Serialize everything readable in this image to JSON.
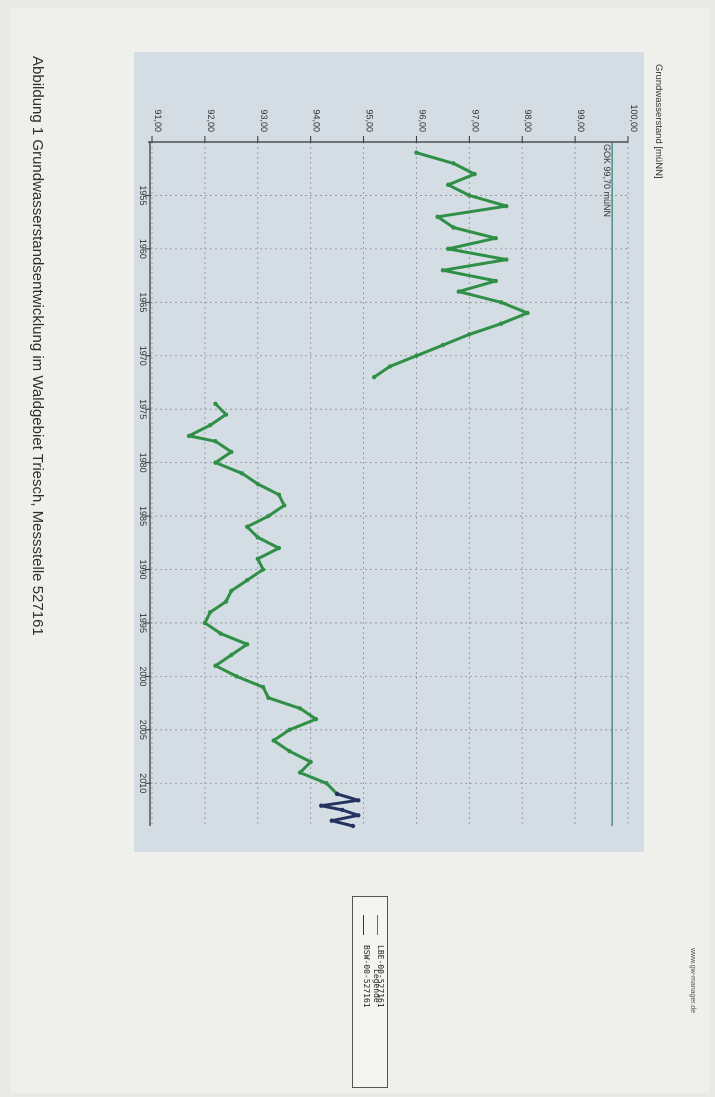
{
  "caption": "Abbildung 1    Grundwasserstandsentwicklung im Waldgebiet Triesch, Messstelle 527161",
  "watermark": "www.gw-manager.de",
  "legend": {
    "title": "Legende",
    "items": [
      {
        "label": "BSW-00-527161",
        "color": "#24325f"
      },
      {
        "label": "LBE-00-527161",
        "color": "#2f8f47"
      }
    ]
  },
  "chart_data": {
    "type": "line",
    "ylabel": "Grundwasserstand [müNN]",
    "annotation": "GOK 99,70 müNN",
    "gok_value": 99.7,
    "xlim": [
      1950,
      2014
    ],
    "ylim": [
      91,
      100
    ],
    "y_ticks": [
      "91,00",
      "92,00",
      "93,00",
      "94,00",
      "95,00",
      "96,00",
      "97,00",
      "98,00",
      "99,00",
      "100,00"
    ],
    "x_ticks": [
      1955,
      1960,
      1965,
      1970,
      1975,
      1980,
      1985,
      1990,
      1995,
      2000,
      2005,
      2010
    ],
    "grid": true,
    "background": "#d4dde4",
    "series": [
      {
        "name": "LBE-00-527161",
        "color": "#2f8f47",
        "points": [
          [
            1951,
            96
          ],
          [
            1952,
            96.7
          ],
          [
            1953,
            97.1
          ],
          [
            1954,
            96.6
          ],
          [
            1955,
            97
          ],
          [
            1956,
            97.7
          ],
          [
            1957,
            96.4
          ],
          [
            1958,
            96.7
          ],
          [
            1959,
            97.5
          ],
          [
            1960,
            96.6
          ],
          [
            1961,
            97.7
          ],
          [
            1962,
            96.5
          ],
          [
            1963,
            97.5
          ],
          [
            1964,
            96.8
          ],
          [
            1965,
            97.6
          ],
          [
            1966,
            98.1
          ],
          [
            1967,
            97.6
          ],
          [
            1968,
            97
          ],
          [
            1969,
            96.5
          ],
          [
            1970,
            96
          ],
          [
            1971,
            95.5
          ],
          [
            1972,
            95.2
          ]
        ]
      },
      {
        "name": "LBE-00-527161",
        "color": "#2f8f47",
        "points": [
          [
            1974.5,
            92.2
          ],
          [
            1975.5,
            92.4
          ],
          [
            1976.5,
            92.1
          ],
          [
            1977.5,
            91.7
          ],
          [
            1978,
            92.2
          ],
          [
            1979,
            92.5
          ],
          [
            1980,
            92.2
          ],
          [
            1981,
            92.7
          ],
          [
            1982,
            93
          ],
          [
            1983,
            93.4
          ],
          [
            1984,
            93.5
          ],
          [
            1985,
            93.2
          ],
          [
            1986,
            92.8
          ],
          [
            1987,
            93
          ],
          [
            1988,
            93.4
          ],
          [
            1989,
            93
          ],
          [
            1990,
            93.1
          ],
          [
            1991,
            92.8
          ],
          [
            1992,
            92.5
          ],
          [
            1993,
            92.4
          ],
          [
            1994,
            92.1
          ],
          [
            1995,
            92
          ],
          [
            1996,
            92.3
          ],
          [
            1997,
            92.8
          ],
          [
            1998,
            92.5
          ],
          [
            1999,
            92.2
          ],
          [
            2000,
            92.6
          ],
          [
            2001,
            93.1
          ],
          [
            2002,
            93.2
          ],
          [
            2003,
            93.8
          ],
          [
            2004,
            94.1
          ],
          [
            2005,
            93.6
          ],
          [
            2006,
            93.3
          ],
          [
            2007,
            93.6
          ],
          [
            2008,
            94
          ],
          [
            2009,
            93.8
          ],
          [
            2010,
            94.3
          ],
          [
            2011,
            94.5
          ]
        ]
      },
      {
        "name": "BSW-00-527161",
        "color": "#24325f",
        "points": [
          [
            2011,
            94.5
          ],
          [
            2011.6,
            94.9
          ],
          [
            2012.1,
            94.2
          ],
          [
            2012.5,
            94.6
          ],
          [
            2013,
            94.9
          ],
          [
            2013.5,
            94.4
          ],
          [
            2014,
            94.8
          ]
        ]
      }
    ]
  }
}
